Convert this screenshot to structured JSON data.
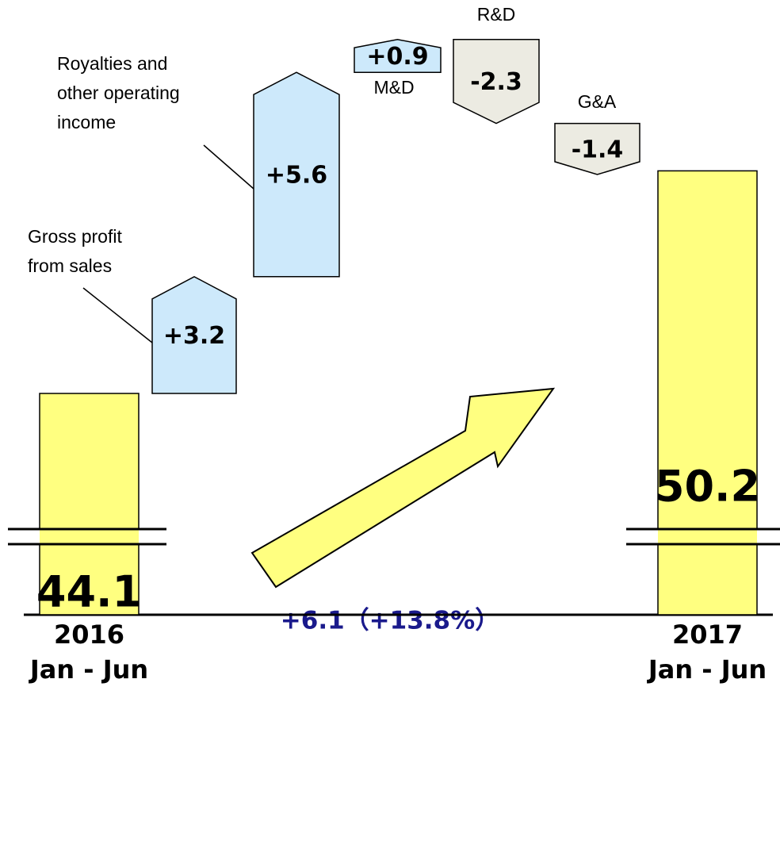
{
  "chart_data": {
    "type": "waterfall",
    "categories": [
      [
        "2016",
        "Jan - Jun"
      ],
      null,
      null,
      null,
      null,
      null,
      [
        "2017",
        "Jan - Jun"
      ]
    ],
    "step_labels": [
      null,
      [
        "Gross profit",
        "from sales"
      ],
      [
        "Royalties and",
        "other operating",
        "income"
      ],
      [
        "M&D"
      ],
      [
        "R&D"
      ],
      [
        "G&A"
      ],
      null
    ],
    "values": [
      44.1,
      3.2,
      5.6,
      0.9,
      -2.3,
      -1.4,
      50.2
    ],
    "value_labels": [
      "44.1",
      "+3.2",
      "+5.6",
      "+0.9",
      "-2.3",
      "-1.4",
      "50.2"
    ],
    "annotation": "+6.1（+13.8%）",
    "colors": {
      "total": "#ffff80",
      "increase": "#cde9fb",
      "decrease": "#ecebe2"
    }
  }
}
